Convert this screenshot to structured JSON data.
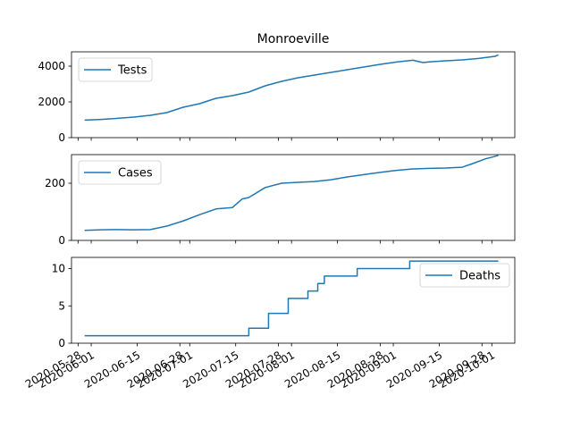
{
  "chart_data": {
    "title": "Monroeville",
    "type": "line",
    "color": "#1f77b4",
    "x_start": "2020-05-30",
    "x_end": "2020-10-03",
    "xlim": [
      "2020-05-26",
      "2020-10-08"
    ],
    "x_tick_labels": [
      {
        "date": "2020-05-28",
        "label": "2020-05-28"
      },
      {
        "date": "2020-06-01",
        "label": "2020-06-01"
      },
      {
        "date": "2020-06-15",
        "label": "2020-06-15"
      },
      {
        "date": "2020-06-28",
        "label": "2020-06-28"
      },
      {
        "date": "2020-07-01",
        "label": "2020-07-01"
      },
      {
        "date": "2020-07-15",
        "label": "2020-07-15"
      },
      {
        "date": "2020-07-28",
        "label": "2020-07-28"
      },
      {
        "date": "2020-08-01",
        "label": "2020-08-01"
      },
      {
        "date": "2020-08-15",
        "label": "2020-08-15"
      },
      {
        "date": "2020-08-28",
        "label": "2020-08-28"
      },
      {
        "date": "2020-09-01",
        "label": "2020-09-01"
      },
      {
        "date": "2020-09-15",
        "label": "2020-09-15"
      },
      {
        "date": "2020-09-28",
        "label": "2020-09-28"
      },
      {
        "date": "2020-10-01",
        "label": "2020-10-01"
      }
    ],
    "panels": [
      {
        "name": "Tests",
        "legend": "Tests",
        "legend_loc": "upper-left",
        "ylim": [
          0,
          4800
        ],
        "yticks": [
          0,
          2000,
          4000
        ],
        "x_days": [
          0,
          5,
          10,
          15,
          20,
          25,
          30,
          35,
          40,
          45,
          50,
          55,
          60,
          65,
          70,
          75,
          80,
          85,
          90,
          95,
          100,
          103,
          105,
          110,
          115,
          120,
          125,
          126
        ],
        "values": [
          980,
          1020,
          1080,
          1150,
          1250,
          1400,
          1700,
          1900,
          2200,
          2350,
          2550,
          2900,
          3150,
          3350,
          3500,
          3650,
          3800,
          3950,
          4100,
          4230,
          4330,
          4200,
          4240,
          4300,
          4350,
          4430,
          4550,
          4630
        ]
      },
      {
        "name": "Cases",
        "legend": "Cases",
        "legend_loc": "upper-left",
        "ylim": [
          0,
          300
        ],
        "yticks": [
          0,
          200
        ],
        "x_days": [
          0,
          5,
          10,
          15,
          20,
          25,
          30,
          35,
          40,
          45,
          48,
          50,
          55,
          60,
          65,
          70,
          75,
          80,
          85,
          90,
          95,
          100,
          105,
          110,
          115,
          118,
          122,
          126
        ],
        "values": [
          35,
          37,
          38,
          37,
          38,
          50,
          68,
          90,
          110,
          115,
          145,
          150,
          185,
          200,
          203,
          206,
          212,
          222,
          230,
          238,
          245,
          250,
          252,
          253,
          256,
          268,
          285,
          297
        ]
      },
      {
        "name": "Deaths",
        "legend": "Deaths",
        "legend_loc": "upper-right",
        "ylim": [
          0,
          11.5
        ],
        "yticks": [
          0,
          5,
          10
        ],
        "x_days": [
          0,
          50,
          50,
          56,
          56,
          62,
          62,
          68,
          68,
          71,
          71,
          73,
          73,
          75,
          75,
          83,
          83,
          99,
          99,
          126
        ],
        "values": [
          1,
          1,
          2,
          2,
          4,
          4,
          6,
          6,
          7,
          7,
          8,
          8,
          9,
          9,
          9,
          9,
          10,
          10,
          11,
          11
        ]
      }
    ]
  }
}
